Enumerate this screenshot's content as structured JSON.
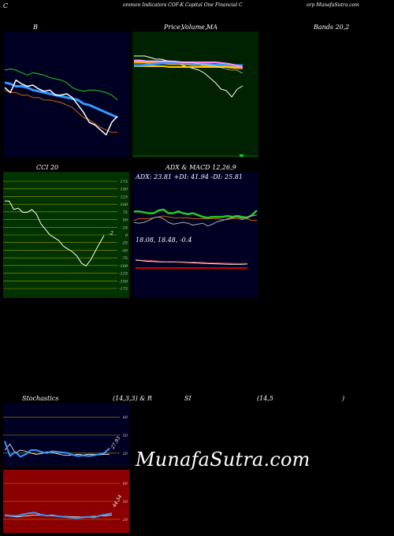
{
  "header": {
    "left_c": "C",
    "title_mid": "ommon  Indicators COF-K Capital One   Financial C",
    "title_right": "orp MunafaSutra.com"
  },
  "labels": {
    "bb": "B",
    "price_ma_a": "Price,",
    "price_ma_b": "Volume,",
    "price_ma_c": "MA",
    "bands": "Bands 20,2",
    "cci": "CCI 20",
    "adx_title": "ADX  & MACD 12,26,9",
    "adx_values": "ADX: 23.81  +DI: 41.94  -DI: 25.81",
    "macd_values": "18.08,  18.48,  -0.4",
    "stoch_a": "Stochastics",
    "stoch_b": "(14,3,3) & R",
    "stoch_c": "SI",
    "stoch_d": "(14,5",
    "stoch_e": ")",
    "cci_last": "-2",
    "stoch_last": "27.93",
    "rsi_last": "44.54"
  },
  "watermark": "MunafaSutra.com",
  "colors": {
    "bb_bg": "#000022",
    "price_bg": "#002200",
    "cci_bg": "#003300",
    "adx_bg": "#000022",
    "stoch_bg": "#000022",
    "rsi_bg": "#8b0000",
    "blue": "#3399ff",
    "white": "#ffffff",
    "green": "#22cc22",
    "orange": "#cc6600"
  },
  "chart_data": [
    {
      "type": "line",
      "panel": "bollinger",
      "series": [
        {
          "values": [
            62,
            62.5,
            62,
            61,
            60,
            61,
            60.5,
            60,
            59,
            58.5,
            58,
            57,
            55,
            54,
            53.5,
            54,
            54,
            53.5,
            53,
            52,
            50
          ]
        },
        {
          "values": [
            57,
            56.5,
            55.5,
            55.5,
            55,
            54,
            53.5,
            53,
            52.5,
            52,
            51.5,
            51,
            50.5,
            50,
            48.5,
            48,
            47,
            46,
            45,
            44,
            43
          ]
        },
        {
          "values": [
            54,
            53,
            53,
            52,
            52,
            51,
            51,
            50,
            50,
            49.5,
            49,
            48,
            47,
            45,
            43,
            42,
            40.5,
            39,
            38,
            37,
            37
          ]
        },
        {
          "values": [
            55,
            53,
            58,
            56.5,
            55.5,
            56,
            54.5,
            53.5,
            54,
            52,
            52,
            52.5,
            51,
            48,
            45,
            41,
            40,
            38,
            36,
            41,
            43.5
          ]
        }
      ],
      "ylim": [
        30,
        75
      ]
    },
    {
      "type": "line",
      "panel": "price_ma",
      "series": [
        {
          "values": [
            62,
            62,
            62,
            61,
            60,
            60,
            59,
            58,
            57,
            56,
            55,
            54,
            53,
            51,
            48,
            45,
            41,
            40,
            36,
            41,
            43
          ]
        },
        {
          "values": [
            58,
            58,
            58,
            57.5,
            57.5,
            57,
            57,
            57,
            56.5,
            56.5,
            56,
            56,
            56,
            55,
            54.5,
            54.5
          ]
        },
        {
          "values": [
            55.5,
            55.5,
            55.5,
            55.5,
            55.5,
            55,
            55,
            55,
            55,
            55,
            55,
            55,
            55,
            55,
            55,
            55
          ]
        },
        {
          "values": [
            56,
            56,
            56.5,
            57,
            57.5,
            57.5,
            57.5,
            57.5,
            57,
            57,
            57,
            56.5,
            56.5,
            56.5,
            56,
            56
          ]
        },
        {
          "values": [
            59,
            59,
            58.5,
            58.5,
            58.5,
            58.5,
            58.5,
            58,
            58,
            58,
            58,
            58,
            58,
            57.5,
            57,
            56,
            55
          ]
        },
        {
          "values": [
            59.5,
            59.5,
            59,
            59,
            59,
            59,
            59,
            58.5,
            58,
            58,
            57.5,
            57,
            56.5,
            56,
            55,
            54,
            53,
            53,
            51
          ]
        }
      ],
      "ylim": [
        0,
        75
      ]
    },
    {
      "type": "line",
      "panel": "cci",
      "yticks": [
        175,
        150,
        125,
        100,
        75,
        50,
        25,
        0,
        -25,
        -50,
        -75,
        -100,
        -125,
        -150,
        -175
      ],
      "values": [
        120,
        120,
        90,
        95,
        80,
        80,
        90,
        75,
        40,
        20,
        0,
        -10,
        -20,
        -40,
        -50,
        -60,
        -75,
        -100,
        -110,
        -90,
        -60,
        -30,
        -2
      ],
      "ylim": [
        -190,
        190
      ]
    },
    {
      "type": "line",
      "panel": "adx",
      "series": [
        {
          "values": [
            12,
            11,
            12,
            14,
            17,
            18,
            16,
            12,
            10,
            11,
            12,
            11,
            9,
            10,
            11,
            8,
            10,
            13,
            14,
            16,
            17,
            18,
            16,
            18,
            19,
            20
          ]
        },
        {
          "values": [
            24,
            24,
            23,
            22,
            22,
            25,
            26,
            22,
            22,
            24,
            22,
            21,
            22,
            20,
            18,
            17,
            18,
            18,
            18,
            19,
            18,
            19,
            18,
            17,
            20,
            25
          ]
        },
        {
          "values": [
            14,
            16,
            16,
            16,
            17,
            18,
            19,
            18,
            17,
            17,
            17,
            17,
            16,
            16,
            16,
            16,
            16,
            16,
            15,
            15,
            16,
            16,
            15,
            16,
            14,
            14
          ]
        }
      ],
      "ylim": [
        0,
        50
      ]
    },
    {
      "type": "line",
      "panel": "macd",
      "series": [
        {
          "values": [
            20,
            19.5,
            19,
            18.7,
            18.5,
            18.4,
            18.3,
            18.2,
            18,
            17.8,
            17.5,
            17.2,
            17,
            16.8,
            16.6,
            16.4,
            16.3,
            16.2,
            16.3,
            16.5
          ]
        },
        {
          "values": [
            20.5,
            20,
            19.8,
            19.5,
            19,
            18.8,
            18.7,
            18.6,
            18.5,
            18.3,
            18.2,
            18,
            17.8,
            17.6,
            17.5,
            17.3,
            17.2,
            17,
            17,
            17
          ]
        }
      ],
      "ylim": [
        0,
        30
      ]
    },
    {
      "type": "line",
      "panel": "stochastics",
      "yticks": [
        80,
        50,
        20
      ],
      "series": [
        {
          "values": [
            40,
            15,
            22,
            14,
            18,
            25,
            25,
            22,
            20,
            23,
            22,
            21,
            20,
            17,
            15,
            16,
            15,
            16,
            18,
            20,
            28
          ]
        },
        {
          "values": [
            25,
            35,
            20,
            25,
            23,
            20,
            18,
            19,
            22,
            21,
            19,
            17,
            16,
            17,
            18,
            17,
            18,
            18,
            17,
            18,
            18
          ]
        }
      ],
      "ylim": [
        0,
        100
      ]
    },
    {
      "type": "line",
      "panel": "rsi",
      "yticks": [
        80,
        50,
        20
      ],
      "series": [
        {
          "values": [
            27,
            26,
            25.5,
            28,
            30,
            31,
            28,
            26,
            27,
            25,
            24,
            23,
            22,
            23,
            24,
            23,
            26,
            28,
            30
          ]
        },
        {
          "values": [
            26,
            25,
            24,
            25,
            26,
            27,
            27,
            26,
            25.5,
            25,
            25,
            24.5,
            24,
            24,
            24.5,
            25,
            25.5,
            26,
            27
          ]
        }
      ],
      "ylim": [
        0,
        100
      ]
    }
  ]
}
